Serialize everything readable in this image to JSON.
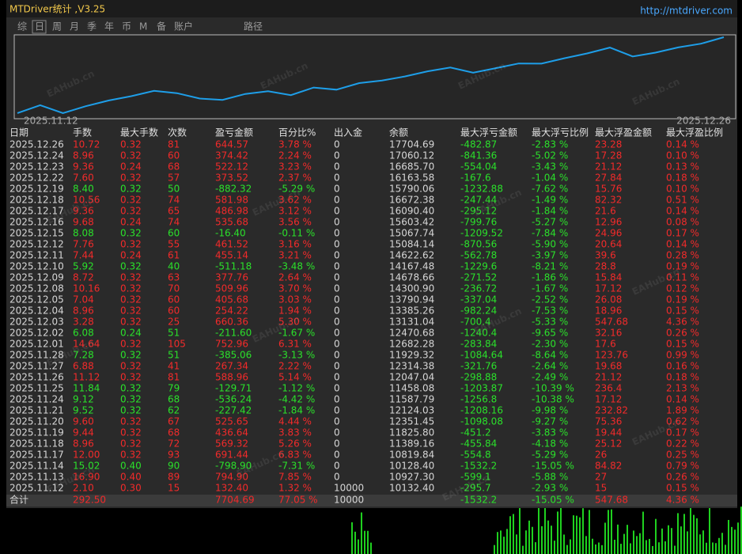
{
  "title": "MTDriver统计 ,V3.25",
  "url": "http://mtdriver.com",
  "tabs": [
    "综",
    "日",
    "周",
    "月",
    "季",
    "年",
    "币",
    "M",
    "备",
    "账户",
    "路径"
  ],
  "watermark": "EAHub.cn",
  "colors": {
    "profit": "#f22a2a",
    "loss": "#2ae02a",
    "neutral": "#d6d6d6",
    "line": "#1e9ee8"
  },
  "table": {
    "headers": [
      "日期",
      "手数",
      "最大手数",
      "次数",
      "盈亏金额",
      "百分比%",
      "出入金",
      "余额",
      "最大浮亏金额",
      "最大浮亏比例",
      "最大浮盈金额",
      "最大浮盈比例"
    ],
    "rows": [
      [
        "2025.12.26",
        "10.72",
        "0.32",
        "81",
        "644.57",
        "3.78 %",
        "0",
        "17704.69",
        "-482.87",
        "-2.83 %",
        "23.28",
        "0.14 %"
      ],
      [
        "2025.12.24",
        "8.96",
        "0.32",
        "60",
        "374.42",
        "2.24 %",
        "0",
        "17060.12",
        "-841.36",
        "-5.02 %",
        "17.28",
        "0.10 %"
      ],
      [
        "2025.12.23",
        "9.36",
        "0.24",
        "68",
        "522.12",
        "3.23 %",
        "0",
        "16685.70",
        "-554.04",
        "-3.43 %",
        "21.12",
        "0.13 %"
      ],
      [
        "2025.12.22",
        "7.60",
        "0.32",
        "57",
        "373.52",
        "2.37 %",
        "0",
        "16163.58",
        "-167.6",
        "-1.04 %",
        "27.84",
        "0.18 %"
      ],
      [
        "2025.12.19",
        "8.40",
        "0.32",
        "50",
        "-882.32",
        "-5.29 %",
        "0",
        "15790.06",
        "-1232.88",
        "-7.62 %",
        "15.76",
        "0.10 %"
      ],
      [
        "2025.12.18",
        "10.56",
        "0.32",
        "74",
        "581.98",
        "3.62 %",
        "0",
        "16672.38",
        "-247.44",
        "-1.49 %",
        "82.32",
        "0.51 %"
      ],
      [
        "2025.12.17",
        "9.36",
        "0.32",
        "65",
        "486.98",
        "3.12 %",
        "0",
        "16090.40",
        "-295.12",
        "-1.84 %",
        "21.6",
        "0.14 %"
      ],
      [
        "2025.12.16",
        "9.68",
        "0.24",
        "74",
        "535.68",
        "3.56 %",
        "0",
        "15603.42",
        "-799.76",
        "-5.27 %",
        "12.96",
        "0.08 %"
      ],
      [
        "2025.12.15",
        "8.08",
        "0.32",
        "60",
        "-16.40",
        "-0.11 %",
        "0",
        "15067.74",
        "-1209.52",
        "-7.84 %",
        "24.96",
        "0.17 %"
      ],
      [
        "2025.12.12",
        "7.76",
        "0.32",
        "55",
        "461.52",
        "3.16 %",
        "0",
        "15084.14",
        "-870.56",
        "-5.90 %",
        "20.64",
        "0.14 %"
      ],
      [
        "2025.12.11",
        "7.44",
        "0.24",
        "61",
        "455.14",
        "3.21 %",
        "0",
        "14622.62",
        "-562.78",
        "-3.97 %",
        "39.6",
        "0.28 %"
      ],
      [
        "2025.12.10",
        "5.92",
        "0.32",
        "40",
        "-511.18",
        "-3.48 %",
        "0",
        "14167.48",
        "-1229.6",
        "-8.21 %",
        "28.8",
        "0.19 %"
      ],
      [
        "2025.12.09",
        "8.72",
        "0.32",
        "63",
        "377.76",
        "2.64 %",
        "0",
        "14678.66",
        "-271.52",
        "-1.86 %",
        "15.84",
        "0.11 %"
      ],
      [
        "2025.12.08",
        "10.16",
        "0.32",
        "70",
        "509.96",
        "3.70 %",
        "0",
        "14300.90",
        "-236.72",
        "-1.67 %",
        "17.12",
        "0.12 %"
      ],
      [
        "2025.12.05",
        "7.04",
        "0.32",
        "60",
        "405.68",
        "3.03 %",
        "0",
        "13790.94",
        "-337.04",
        "-2.52 %",
        "26.08",
        "0.19 %"
      ],
      [
        "2025.12.04",
        "8.96",
        "0.32",
        "60",
        "254.22",
        "1.94 %",
        "0",
        "13385.26",
        "-982.24",
        "-7.53 %",
        "18.96",
        "0.15 %"
      ],
      [
        "2025.12.03",
        "3.28",
        "0.32",
        "25",
        "660.36",
        "5.30 %",
        "0",
        "13131.04",
        "-700.4",
        "-5.33 %",
        "547.68",
        "4.36 %"
      ],
      [
        "2025.12.02",
        "6.08",
        "0.24",
        "51",
        "-211.60",
        "-1.67 %",
        "0",
        "12470.68",
        "-1240.4",
        "-9.65 %",
        "32.16",
        "0.26 %"
      ],
      [
        "2025.12.01",
        "14.64",
        "0.32",
        "105",
        "752.96",
        "6.31 %",
        "0",
        "12682.28",
        "-283.84",
        "-2.30 %",
        "17.6",
        "0.15 %"
      ],
      [
        "2025.11.28",
        "7.28",
        "0.32",
        "51",
        "-385.06",
        "-3.13 %",
        "0",
        "11929.32",
        "-1084.64",
        "-8.64 %",
        "123.76",
        "0.99 %"
      ],
      [
        "2025.11.27",
        "6.88",
        "0.32",
        "41",
        "267.34",
        "2.22 %",
        "0",
        "12314.38",
        "-321.76",
        "-2.64 %",
        "19.68",
        "0.16 %"
      ],
      [
        "2025.11.26",
        "11.12",
        "0.32",
        "81",
        "588.96",
        "5.14 %",
        "0",
        "12047.04",
        "-298.88",
        "-2.49 %",
        "21.12",
        "0.18 %"
      ],
      [
        "2025.11.25",
        "11.84",
        "0.32",
        "79",
        "-129.71",
        "-1.12 %",
        "0",
        "11458.08",
        "-1203.87",
        "-10.39 %",
        "236.4",
        "2.13 %"
      ],
      [
        "2025.11.24",
        "9.12",
        "0.32",
        "68",
        "-536.24",
        "-4.42 %",
        "0",
        "11587.79",
        "-1256.8",
        "-10.38 %",
        "17.12",
        "0.14 %"
      ],
      [
        "2025.11.21",
        "9.52",
        "0.32",
        "62",
        "-227.42",
        "-1.84 %",
        "0",
        "12124.03",
        "-1208.16",
        "-9.98 %",
        "232.82",
        "1.89 %"
      ],
      [
        "2025.11.20",
        "9.60",
        "0.32",
        "67",
        "525.65",
        "4.44 %",
        "0",
        "12351.45",
        "-1098.08",
        "-9.27 %",
        "75.36",
        "0.62 %"
      ],
      [
        "2025.11.19",
        "9.44",
        "0.32",
        "68",
        "436.64",
        "3.83 %",
        "0",
        "11825.80",
        "-451.2",
        "-3.83 %",
        "19.44",
        "0.17 %"
      ],
      [
        "2025.11.18",
        "8.96",
        "0.32",
        "72",
        "569.32",
        "5.26 %",
        "0",
        "11389.16",
        "-455.84",
        "-4.18 %",
        "25.12",
        "0.22 %"
      ],
      [
        "2025.11.17",
        "12.00",
        "0.32",
        "93",
        "691.44",
        "6.83 %",
        "0",
        "10819.84",
        "-554.8",
        "-5.29 %",
        "26",
        "0.25 %"
      ],
      [
        "2025.11.14",
        "15.02",
        "0.40",
        "90",
        "-798.90",
        "-7.31 %",
        "0",
        "10128.40",
        "-1532.2",
        "-15.05 %",
        "84.82",
        "0.79 %"
      ],
      [
        "2025.11.13",
        "16.90",
        "0.40",
        "89",
        "794.90",
        "7.85 %",
        "0",
        "10927.30",
        "-599.1",
        "-5.88 %",
        "27",
        "0.26 %"
      ],
      [
        "2025.11.12",
        "2.10",
        "0.30",
        "15",
        "132.40",
        "1.32 %",
        "10000",
        "10132.40",
        "-295.7",
        "-2.93 %",
        "15",
        "0.15 %"
      ]
    ],
    "total": [
      "合计",
      "292.50",
      null,
      null,
      "7704.69",
      "77.05 %",
      "10000",
      null,
      "-1532.2",
      "-15.05 %",
      "547.68",
      "4.36 %"
    ]
  }
}
